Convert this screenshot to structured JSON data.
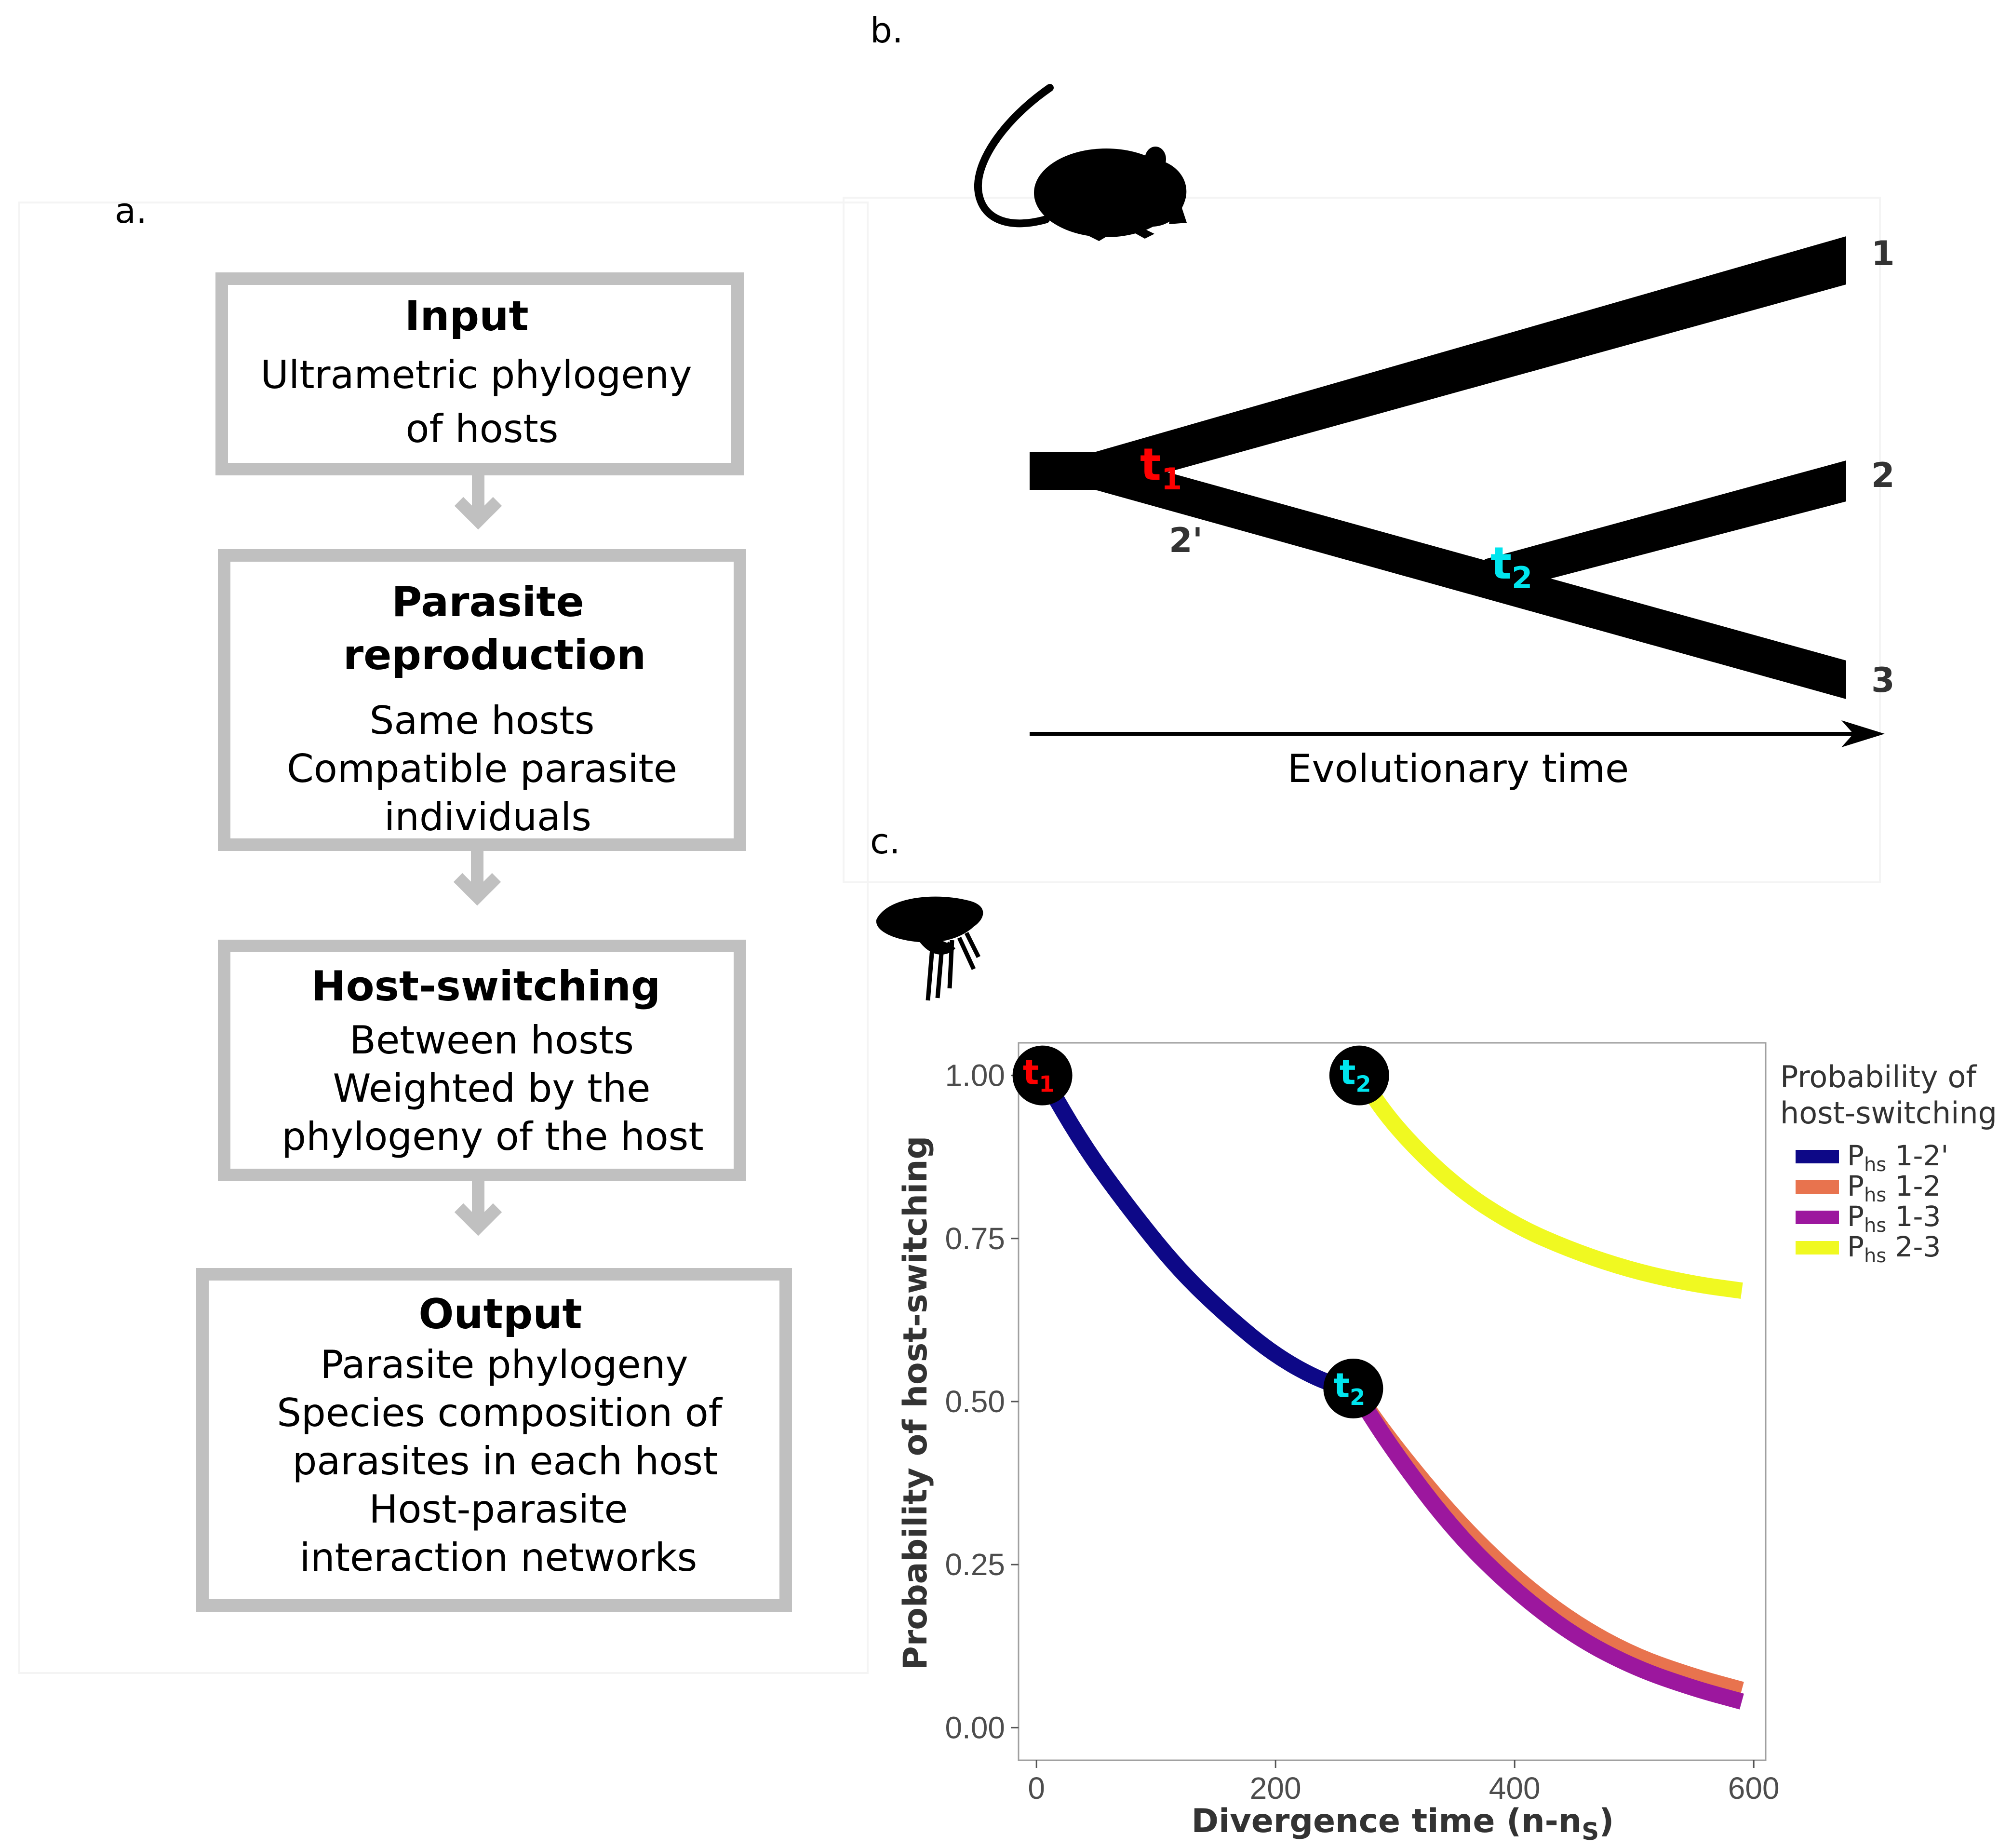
{
  "panel_a": {
    "letter": "a.",
    "boxes": [
      {
        "title": "Input",
        "lines": [
          "Ultrametric phylogeny",
          "of hosts"
        ]
      },
      {
        "title_lines": [
          "Parasite",
          "reproduction"
        ],
        "lines": [
          "Same hosts",
          "Compatible parasite",
          "individuals"
        ]
      },
      {
        "title": "Host-switching",
        "lines": [
          "Between hosts",
          "Weighted by the",
          "phylogeny of the host"
        ]
      },
      {
        "title": "Output",
        "lines": [
          "Parasite phylogeny",
          "Species composition of",
          "parasites in each host",
          "Host-parasite",
          "interaction networks"
        ]
      }
    ]
  },
  "panel_b": {
    "letter": "b.",
    "icon": "mouse-silhouette-icon",
    "tips": [
      "1",
      "2",
      "3"
    ],
    "intermediate_label": "2'",
    "node_t1": {
      "main": "t",
      "sub": "1",
      "color": "#ff0000"
    },
    "node_t2": {
      "main": "t",
      "sub": "2",
      "color": "#00e5ee"
    },
    "time_label": "Evolutionary time"
  },
  "panel_c": {
    "letter": "c.",
    "icon": "flea-silhouette-icon",
    "legend_title_lines": [
      "Probability of",
      "host-switching"
    ],
    "legend": [
      {
        "sym": "P",
        "sub": "hs",
        "rest": " 1-2'",
        "color": "#0d0887"
      },
      {
        "sym": "P",
        "sub": "hs",
        "rest": " 1-2",
        "color": "#e8734e"
      },
      {
        "sym": "P",
        "sub": "hs",
        "rest": " 1-3",
        "color": "#9c179e"
      },
      {
        "sym": "P",
        "sub": "hs",
        "rest": " 2-3",
        "color": "#f0f921"
      }
    ],
    "y_axis_title": "Probability of host-switching",
    "x_axis_title_main": "Divergence time (n-n",
    "x_axis_title_sub": "S",
    "x_axis_title_end": ")"
  },
  "chart_data": {
    "type": "line",
    "xlabel": "Divergence time (n-nS)",
    "ylabel": "Probability of host-switching",
    "xlim": [
      -15,
      610
    ],
    "ylim": [
      -0.05,
      1.05
    ],
    "xticks": [
      "0",
      "200",
      "400",
      "600"
    ],
    "yticks": [
      "0.00",
      "0.25",
      "0.50",
      "0.75",
      "1.00"
    ],
    "legend_position": "right",
    "grid": false,
    "series": [
      {
        "name": "Phs 1-2'",
        "color": "#0d0887",
        "x": [
          5,
          40,
          80,
          120,
          160,
          200,
          240,
          265
        ],
        "y": [
          1.0,
          0.89,
          0.79,
          0.7,
          0.63,
          0.57,
          0.53,
          0.52
        ]
      },
      {
        "name": "Phs 1-2",
        "color": "#e8734e",
        "x": [
          265,
          300,
          350,
          400,
          450,
          500,
          550,
          590
        ],
        "y": [
          0.52,
          0.43,
          0.32,
          0.23,
          0.16,
          0.11,
          0.078,
          0.058
        ]
      },
      {
        "name": "Phs 1-3",
        "color": "#9c179e",
        "x": [
          265,
          300,
          350,
          400,
          450,
          500,
          550,
          590
        ],
        "y": [
          0.52,
          0.42,
          0.3,
          0.21,
          0.14,
          0.092,
          0.06,
          0.04
        ]
      },
      {
        "name": "Phs 2-3",
        "color": "#f0f921",
        "x": [
          270,
          300,
          350,
          400,
          450,
          500,
          550,
          590
        ],
        "y": [
          1.0,
          0.92,
          0.83,
          0.77,
          0.73,
          0.7,
          0.68,
          0.67
        ]
      }
    ],
    "markers": [
      {
        "label": "t1",
        "x": 5,
        "y": 1.0,
        "color": "#ff0000"
      },
      {
        "label": "t2",
        "x": 270,
        "y": 1.0,
        "color": "#00e5ee"
      },
      {
        "label": "t2",
        "x": 265,
        "y": 0.52,
        "color": "#00e5ee"
      }
    ]
  }
}
